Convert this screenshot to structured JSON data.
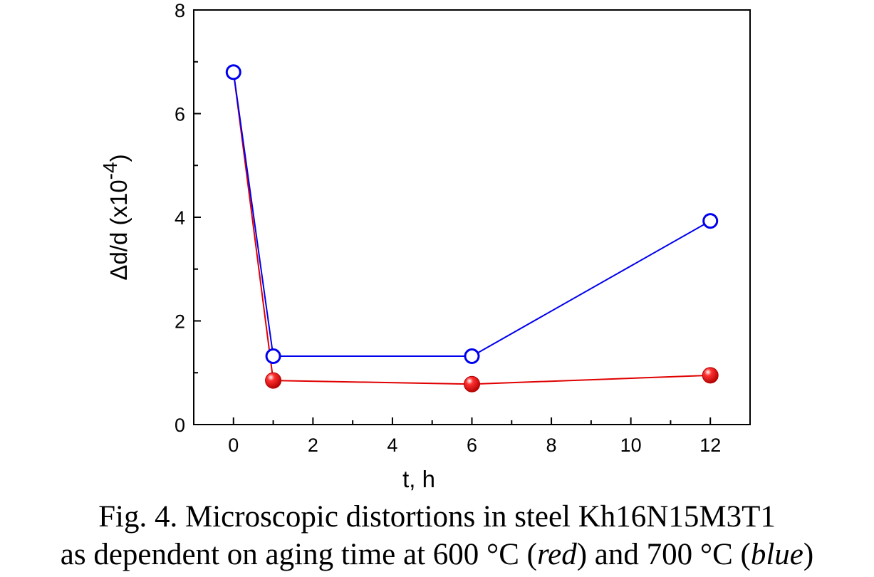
{
  "chart_data": {
    "type": "line",
    "xlabel": "t, h",
    "ylabel": {
      "main": "Δd/d (x10",
      "sup": "-4",
      "close": ")"
    },
    "xlim": [
      -1,
      13
    ],
    "ylim": [
      0,
      8
    ],
    "x_ticks": [
      "0",
      "2",
      "4",
      "6",
      "8",
      "10",
      "12"
    ],
    "y_ticks": [
      "0",
      "2",
      "4",
      "6",
      "8"
    ],
    "grid": false,
    "series": [
      {
        "color": "#0000ee",
        "marker": "open-circle",
        "points": [
          {
            "x": 0,
            "y": 6.8
          },
          {
            "x": 1,
            "y": 1.32
          },
          {
            "x": 6,
            "y": 1.32
          },
          {
            "x": 12,
            "y": 3.93
          }
        ]
      },
      {
        "color": "#e00000",
        "marker": "filled-sphere",
        "points": [
          {
            "x": 0,
            "y": 6.8
          },
          {
            "x": 1,
            "y": 0.85
          },
          {
            "x": 6,
            "y": 0.78
          },
          {
            "x": 12,
            "y": 0.95
          }
        ]
      }
    ]
  },
  "caption": {
    "line1": "Fig. 4. Microscopic distortions in steel Kh16N15M3T1",
    "line2_a": "as dependent on aging time at 600 °C (",
    "line2_red": "red",
    "line2_b": ") and 700 °C (",
    "line2_blue": "blue",
    "line2_c": ")"
  }
}
